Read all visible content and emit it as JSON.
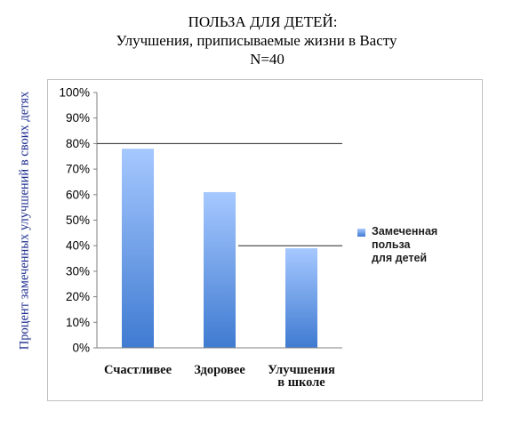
{
  "title": {
    "line1": "ПОЛЬЗА ДЛЯ ДЕТЕЙ:",
    "line2": "Улучшения, приписываемые жизни в Васту",
    "line3": "N=40"
  },
  "chart_data": {
    "type": "bar",
    "title": "ПОЛЬЗА ДЛЯ ДЕТЕЙ: Улучшения, приписываемые жизни в Васту N=40",
    "categories": [
      "Счастливее",
      "Здоровее",
      "Улучшения\nв школе"
    ],
    "series": [
      {
        "name": "Замеченная\nпольза\nдля детей",
        "values": [
          0.78,
          0.61,
          0.39
        ]
      }
    ],
    "ylabel": "Процент замеченных улучшений в своих детях",
    "xlabel": "",
    "ylim": [
      0,
      1
    ],
    "yticks": [
      "0%",
      "10%",
      "20%",
      "30%",
      "40%",
      "50%",
      "60%",
      "70%",
      "80%",
      "90%",
      "100%"
    ],
    "legend": "right",
    "grid": false,
    "reference_lines": [
      0.8,
      0.4
    ],
    "bar_color_top": "#a6c8ff",
    "bar_color_bottom": "#3f7bd1"
  }
}
